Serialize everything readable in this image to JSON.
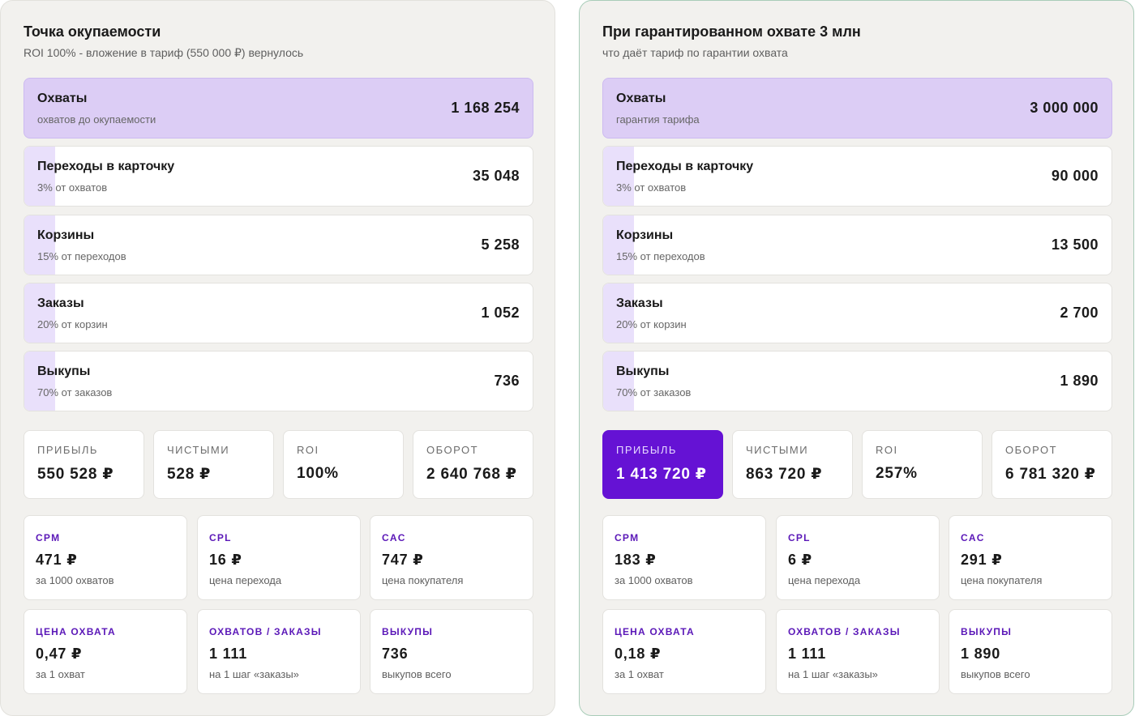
{
  "panels": [
    {
      "title": "Точка окупаемости",
      "subtitle": "ROI 100% - вложение в тариф (550 000 ₽) вернулось",
      "funnel": [
        {
          "title": "Охваты",
          "sub": "охватов до окупаемости",
          "value": "1 168 254",
          "fill": 1.0
        },
        {
          "title": "Переходы в карточку",
          "sub": "3% от охватов",
          "value": "35 048",
          "fill": 0.03
        },
        {
          "title": "Корзины",
          "sub": "15% от переходов",
          "value": "5 258",
          "fill": 0.0045
        },
        {
          "title": "Заказы",
          "sub": "20% от корзин",
          "value": "1 052",
          "fill": 0.0009
        },
        {
          "title": "Выкупы",
          "sub": "70% от заказов",
          "value": "736",
          "fill": 0.0006
        }
      ],
      "kpis": [
        {
          "label": "ПРИБЫЛЬ",
          "value": "550 528 ₽"
        },
        {
          "label": "ЧИСТЫМИ",
          "value": "528 ₽"
        },
        {
          "label": "ROI",
          "value": "100%"
        },
        {
          "label": "ОБОРОТ",
          "value": "2 640 768 ₽"
        }
      ],
      "metrics": [
        {
          "label": "CPM",
          "value": "471 ₽",
          "sub": "за 1000 охватов"
        },
        {
          "label": "CPL",
          "value": "16 ₽",
          "sub": "цена перехода"
        },
        {
          "label": "CAC",
          "value": "747 ₽",
          "sub": "цена покупателя"
        },
        {
          "label": "ЦЕНА ОХВАТА",
          "value": "0,47 ₽",
          "sub": "за 1 охват"
        },
        {
          "label": "ОХВАТОВ / ЗАКАЗЫ",
          "value": "1 111",
          "sub": "на 1 шаг «заказы»"
        },
        {
          "label": "ВЫКУПЫ",
          "value": "736",
          "sub": "выкупов всего"
        }
      ]
    },
    {
      "title": "При гарантированном охвате 3 млн",
      "subtitle": "что даёт тариф по гарантии охвата",
      "funnel": [
        {
          "title": "Охваты",
          "sub": "гарантия тарифа",
          "value": "3 000 000",
          "fill": 1.0
        },
        {
          "title": "Переходы в карточку",
          "sub": "3% от охватов",
          "value": "90 000",
          "fill": 0.03
        },
        {
          "title": "Корзины",
          "sub": "15% от переходов",
          "value": "13 500",
          "fill": 0.0045
        },
        {
          "title": "Заказы",
          "sub": "20% от корзин",
          "value": "2 700",
          "fill": 0.0009
        },
        {
          "title": "Выкупы",
          "sub": "70% от заказов",
          "value": "1 890",
          "fill": 0.0006
        }
      ],
      "kpis": [
        {
          "label": "ПРИБЫЛЬ",
          "value": "1 413 720 ₽"
        },
        {
          "label": "ЧИСТЫМИ",
          "value": "863 720 ₽"
        },
        {
          "label": "ROI",
          "value": "257%"
        },
        {
          "label": "ОБОРОТ",
          "value": "6 781 320 ₽"
        }
      ],
      "metrics": [
        {
          "label": "CPM",
          "value": "183 ₽",
          "sub": "за 1000 охватов"
        },
        {
          "label": "CPL",
          "value": "6 ₽",
          "sub": "цена перехода"
        },
        {
          "label": "CAC",
          "value": "291 ₽",
          "sub": "цена покупателя"
        },
        {
          "label": "ЦЕНА ОХВАТА",
          "value": "0,18 ₽",
          "sub": "за 1 охват"
        },
        {
          "label": "ОХВАТОВ / ЗАКАЗЫ",
          "value": "1 111",
          "sub": "на 1 шаг «заказы»"
        },
        {
          "label": "ВЫКУПЫ",
          "value": "1 890",
          "sub": "выкупов всего"
        }
      ]
    }
  ],
  "colors": {
    "accent": "#6512d4",
    "reach_highlight": "#dccdf5",
    "funnel_bar": "#e9e0fb",
    "metric_label": "#5b18b8"
  }
}
